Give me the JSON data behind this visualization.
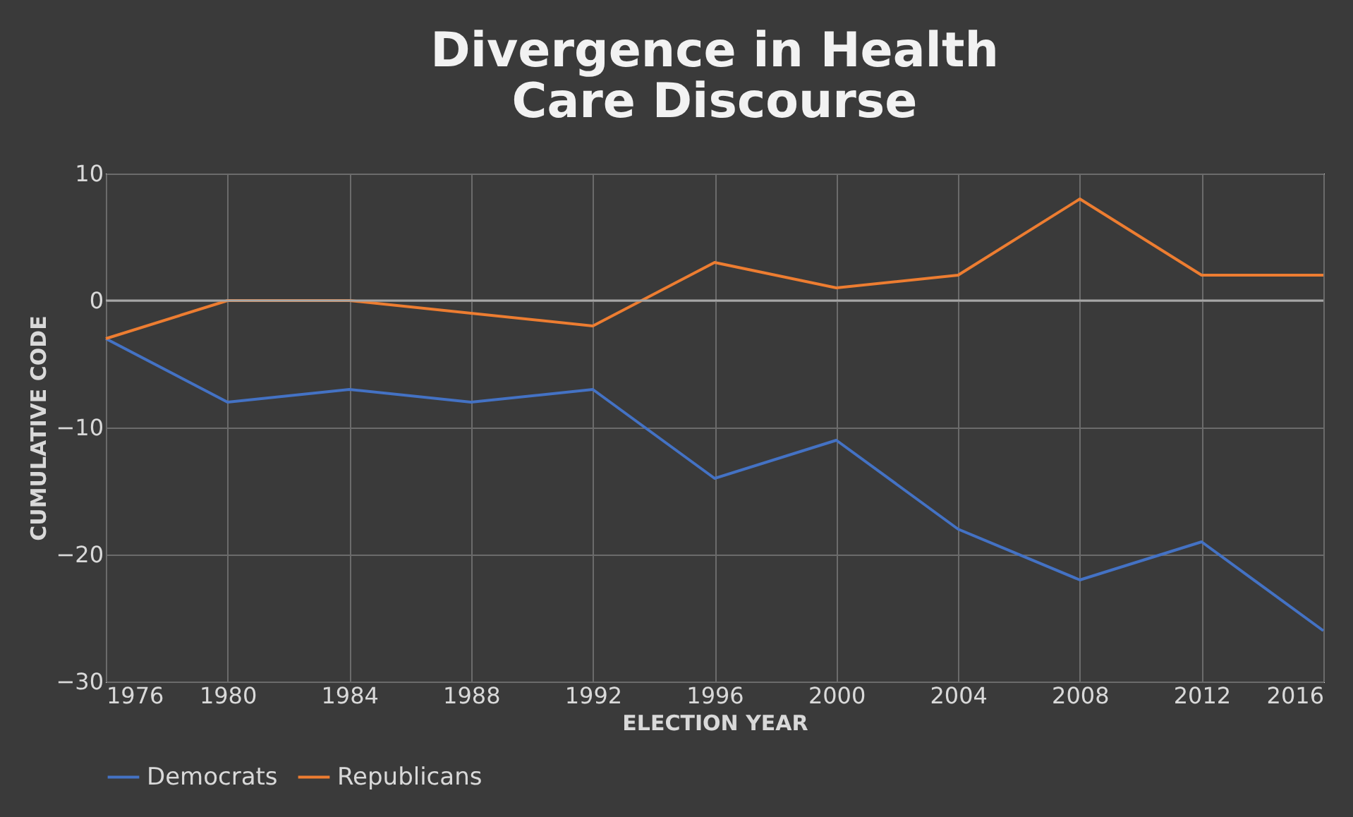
{
  "chart_data": {
    "type": "line",
    "title": "Divergence in Health Care Discourse",
    "xlabel": "ELECTION YEAR",
    "ylabel": "CUMULATIVE CODE",
    "x": [
      1976,
      1980,
      1984,
      1988,
      1992,
      1996,
      2000,
      2004,
      2008,
      2012,
      2016
    ],
    "xlim": [
      1976,
      2016
    ],
    "xticks": [
      1976,
      1980,
      1984,
      1988,
      1992,
      1996,
      2000,
      2004,
      2008,
      2012,
      2016
    ],
    "ylim": [
      -30,
      10
    ],
    "yticks": [
      -30,
      -20,
      -10,
      0,
      10
    ],
    "grid": true,
    "legend": "bottom",
    "marker": "none",
    "line_style": "solid",
    "series": [
      {
        "name": "Democrats",
        "color": "#4472c4",
        "values": [
          -3,
          -8,
          -7,
          -8,
          -7,
          -14,
          -11,
          -18,
          -22,
          -19,
          -26
        ]
      },
      {
        "name": "Republicans",
        "color": "#ed7d31",
        "values": [
          -3,
          0,
          0,
          -1,
          -2,
          3,
          1,
          2,
          8,
          2,
          2
        ]
      }
    ]
  }
}
